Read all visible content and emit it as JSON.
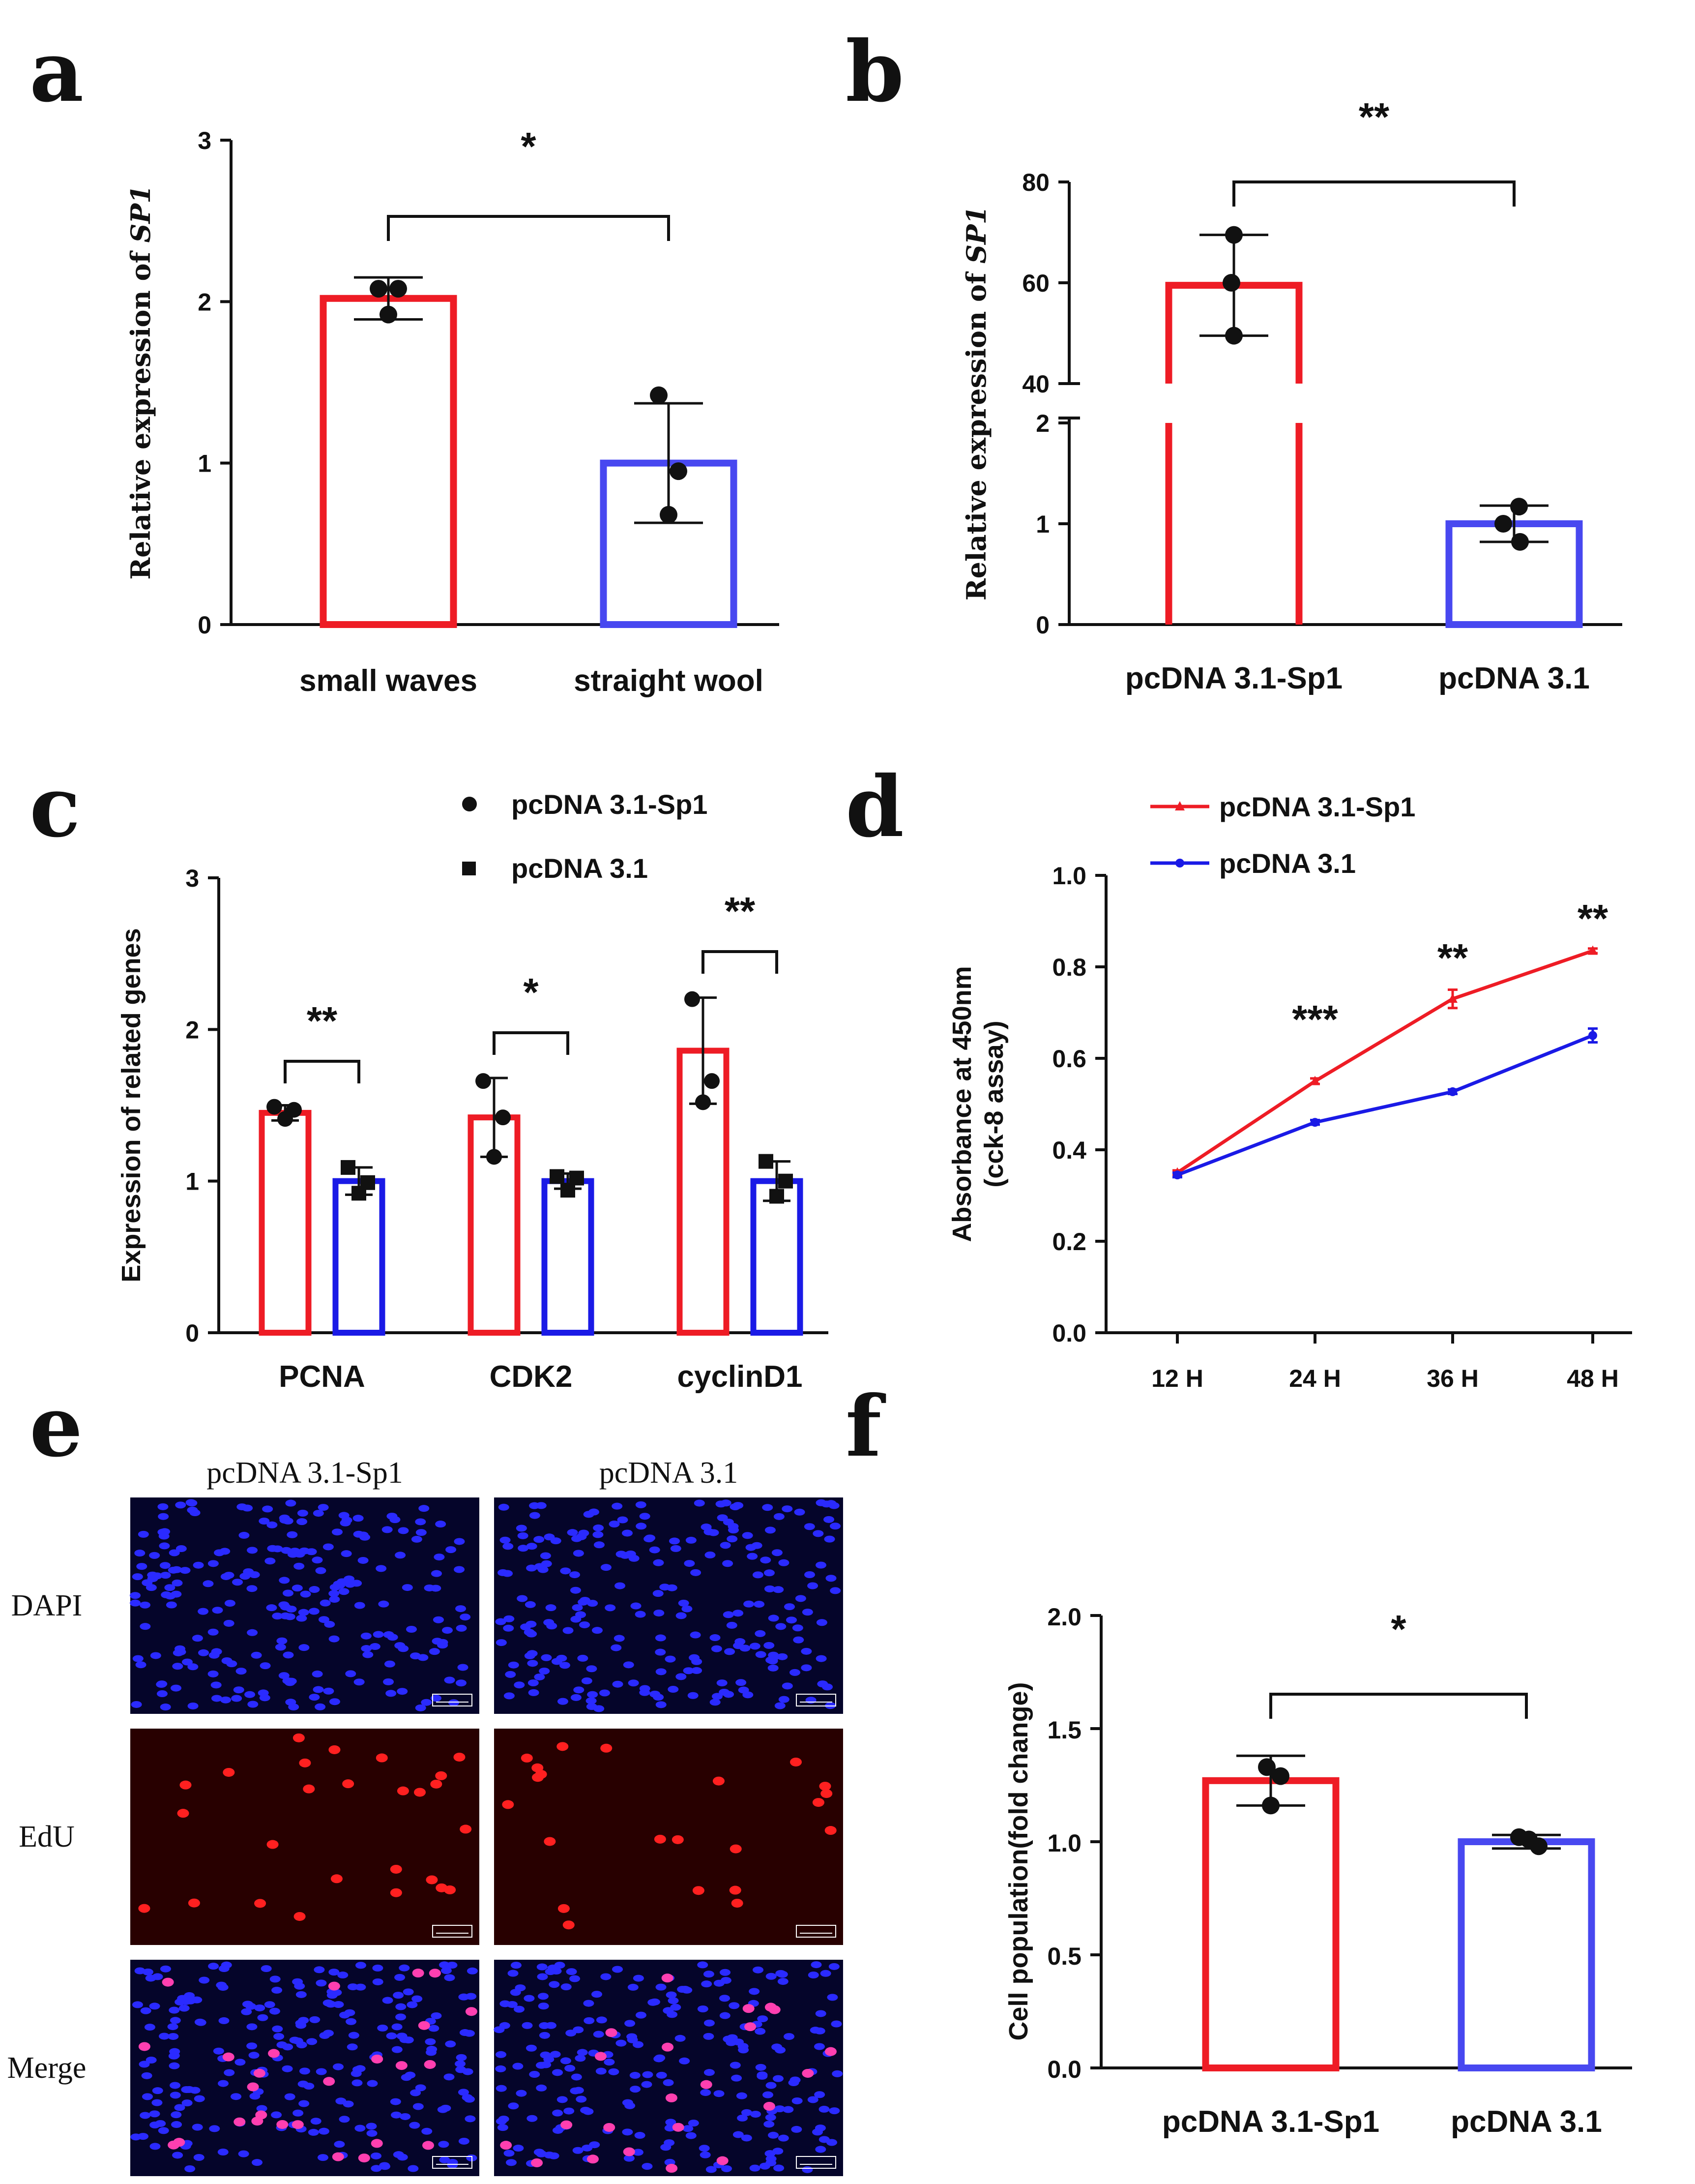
{
  "colors": {
    "red": "#ee1c25",
    "blue": "#4848f0",
    "blue_dark": "#1a1ae6",
    "black": "#111111"
  },
  "chart_data": [
    {
      "panel": "a",
      "type": "bar",
      "ylabel_prefix": "Relative expression of ",
      "ylabel_gene": "SP1",
      "categories": [
        "small waves",
        "straight wool"
      ],
      "values": [
        2.02,
        1.0
      ],
      "errors": [
        0.13,
        0.37
      ],
      "points": [
        [
          2.08,
          2.08,
          1.92
        ],
        [
          1.42,
          0.95,
          0.68
        ]
      ],
      "ylim": [
        0,
        3
      ],
      "yticks": [
        "0",
        "1",
        "2",
        "3"
      ],
      "significance": "*"
    },
    {
      "panel": "b",
      "type": "bar",
      "ylabel_prefix": "Relative expression of ",
      "ylabel_gene": "SP1",
      "broken_axis": true,
      "categories": [
        "pcDNA 3.1-Sp1",
        "pcDNA 3.1"
      ],
      "values": [
        59.5,
        1.0
      ],
      "errors": [
        10,
        0.18
      ],
      "points": [
        [
          69.5,
          60,
          49.5
        ],
        [
          1.17,
          1.0,
          0.82
        ]
      ],
      "ylim_lower": [
        0,
        2
      ],
      "ylim_upper": [
        40,
        80
      ],
      "yticks_lower": [
        "0",
        "1",
        "2"
      ],
      "yticks_upper": [
        "40",
        "60",
        "80"
      ],
      "significance": "**"
    },
    {
      "panel": "c",
      "type": "bar",
      "ylabel": "Expression of related genes",
      "categories": [
        "PCNA",
        "CDK2",
        "cyclinD1"
      ],
      "series": [
        {
          "name": "pcDNA 3.1-Sp1",
          "values": [
            1.45,
            1.42,
            1.86
          ],
          "errors": [
            0.05,
            0.26,
            0.35
          ],
          "points": [
            [
              1.49,
              1.47,
              1.41
            ],
            [
              1.66,
              1.42,
              1.16
            ],
            [
              2.2,
              1.66,
              1.52
            ]
          ]
        },
        {
          "name": "pcDNA 3.1",
          "values": [
            1.0,
            1.0,
            1.0
          ],
          "errors": [
            0.09,
            0.05,
            0.13
          ],
          "points": [
            [
              1.09,
              0.99,
              0.92
            ],
            [
              1.03,
              1.02,
              0.94
            ],
            [
              1.13,
              1.0,
              0.9
            ]
          ]
        }
      ],
      "ylim": [
        0,
        3
      ],
      "yticks": [
        "0",
        "1",
        "2",
        "3"
      ],
      "significance": [
        "**",
        "*",
        "**"
      ]
    },
    {
      "panel": "d",
      "type": "line",
      "ylabel_line1": "Absorbance at 450nm",
      "ylabel_line2": "(cck-8 assay)",
      "categories": [
        "12 H",
        "24 H",
        "36 H",
        "48 H"
      ],
      "series": [
        {
          "name": "pcDNA 3.1-Sp1",
          "values": [
            0.35,
            0.55,
            0.73,
            0.835
          ],
          "errors": [
            0.005,
            0.006,
            0.02,
            0.005
          ]
        },
        {
          "name": "pcDNA 3.1",
          "values": [
            0.345,
            0.46,
            0.527,
            0.65
          ],
          "errors": [
            0.005,
            0.005,
            0.005,
            0.015
          ]
        }
      ],
      "ylim": [
        0,
        1.0
      ],
      "yticks": [
        "0.0",
        "0.2",
        "0.4",
        "0.6",
        "0.8",
        "1.0"
      ],
      "significance": [
        "",
        "***",
        "**",
        "**"
      ]
    },
    {
      "panel": "f",
      "type": "bar",
      "ylabel": "Cell population(fold change)",
      "categories": [
        "pcDNA 3.1-Sp1",
        "pcDNA 3.1"
      ],
      "values": [
        1.27,
        1.0
      ],
      "errors": [
        0.11,
        0.03
      ],
      "points": [
        [
          1.33,
          1.29,
          1.16
        ],
        [
          1.02,
          1.01,
          0.98
        ]
      ],
      "ylim": [
        0,
        2.0
      ],
      "yticks": [
        "0.0",
        "0.5",
        "1.0",
        "1.5",
        "2.0"
      ],
      "significance": "*"
    }
  ],
  "panel_e": {
    "columns": [
      "pcDNA 3.1-Sp1",
      "pcDNA 3.1"
    ],
    "rows": [
      "DAPI",
      "EdU",
      "Merge"
    ]
  },
  "panel_letters": [
    "a",
    "b",
    "c",
    "d",
    "e",
    "f"
  ]
}
